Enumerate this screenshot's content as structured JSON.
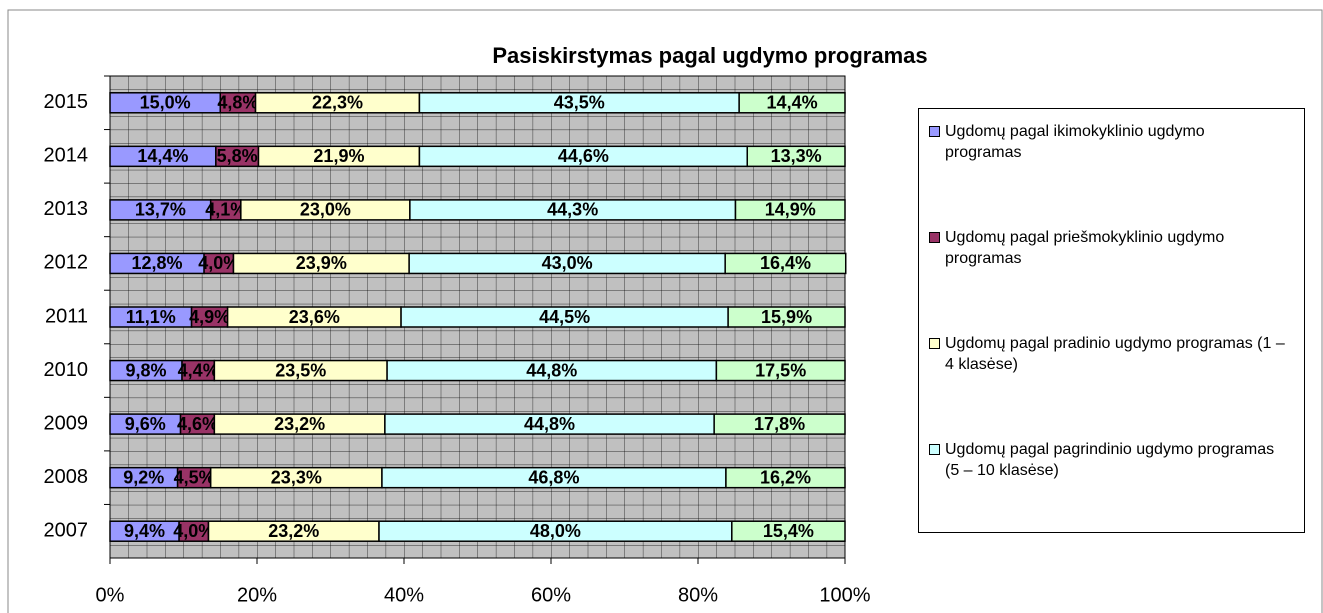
{
  "chart_data": {
    "type": "bar",
    "horizontal": true,
    "stacked": true,
    "title": "Pasiskirstymas pagal ugdymo programas",
    "categories": [
      "2015",
      "2014",
      "2013",
      "2012",
      "2011",
      "2010",
      "2009",
      "2008",
      "2007"
    ],
    "xlim": [
      0,
      100
    ],
    "xticks": [
      {
        "value": 0,
        "label": "0%"
      },
      {
        "value": 20,
        "label": "20%"
      },
      {
        "value": 40,
        "label": "40%"
      },
      {
        "value": 60,
        "label": "60%"
      },
      {
        "value": 80,
        "label": "80%"
      },
      {
        "value": 100,
        "label": "100%"
      }
    ],
    "series": [
      {
        "name": "Ugdomų pagal ikimokyklinio ugdymo programas",
        "color": "#9999ff",
        "values": [
          15.0,
          14.4,
          13.7,
          12.8,
          11.1,
          9.8,
          9.6,
          9.2,
          9.4
        ],
        "value_labels": [
          "15,0%",
          "14,4%",
          "13,7%",
          "12,8%",
          "11,1%",
          "9,8%",
          "9,6%",
          "9,2%",
          "9,4%"
        ]
      },
      {
        "name": "Ugdomų pagal priešmokyklinio ugdymo programas",
        "color": "#993366",
        "values": [
          4.8,
          5.8,
          4.1,
          4.0,
          4.9,
          4.4,
          4.6,
          4.5,
          4.0
        ],
        "value_labels": [
          "4,8%",
          "5,8%",
          "4,1%",
          "4,0%",
          "4,9%",
          "4,4%",
          "4,6%",
          "4,5%",
          "4,0%"
        ]
      },
      {
        "name": "Ugdomų  pagal pradinio ugdymo programas  (1 – 4 klasėse)",
        "color": "#ffffcc",
        "values": [
          22.3,
          21.9,
          23.0,
          23.9,
          23.6,
          23.5,
          23.2,
          23.3,
          23.2
        ],
        "value_labels": [
          "22,3%",
          "21,9%",
          "23,0%",
          "23,9%",
          "23,6%",
          "23,5%",
          "23,2%",
          "23,3%",
          "23,2%"
        ]
      },
      {
        "name": "Ugdomų  pagal pagrindinio ugdymo programas  (5 – 10 klasėse)",
        "color": "#ccffff",
        "values": [
          43.5,
          44.6,
          44.3,
          43.0,
          44.5,
          44.8,
          44.8,
          46.8,
          48.0
        ],
        "value_labels": [
          "43,5%",
          "44,6%",
          "44,3%",
          "43,0%",
          "44,5%",
          "44,8%",
          "44,8%",
          "46,8%",
          "48,0%"
        ]
      },
      {
        "color": "#ccffcc",
        "values": [
          14.4,
          13.3,
          14.9,
          16.4,
          15.9,
          17.5,
          17.8,
          16.2,
          15.4
        ],
        "value_labels": [
          "14,4%",
          "13,3%",
          "14,9%",
          "16,4%",
          "15,9%",
          "17,5%",
          "17,8%",
          "16,2%",
          "15,4%"
        ]
      }
    ]
  }
}
